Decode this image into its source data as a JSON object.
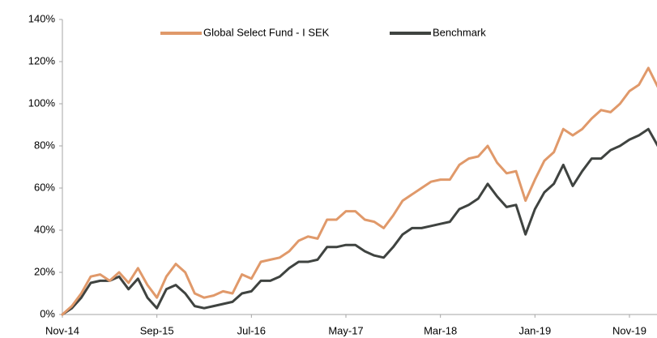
{
  "chart_data": {
    "type": "line",
    "categories": [
      "Nov-14",
      null,
      null,
      null,
      null,
      null,
      null,
      null,
      null,
      null,
      "Sep-15",
      null,
      null,
      null,
      null,
      null,
      null,
      null,
      null,
      null,
      "Jul-16",
      null,
      null,
      null,
      null,
      null,
      null,
      null,
      null,
      null,
      "May-17",
      null,
      null,
      null,
      null,
      null,
      null,
      null,
      null,
      null,
      "Mar-18",
      null,
      null,
      null,
      null,
      null,
      null,
      null,
      null,
      null,
      "Jan-19",
      null,
      null,
      null,
      null,
      null,
      null,
      null,
      null,
      null,
      "Nov-19",
      null,
      null,
      null
    ],
    "series": [
      {
        "name": "Global Select Fund - I SEK",
        "color": "#e0996a",
        "values": [
          0,
          4,
          10,
          18,
          19,
          16,
          20,
          15,
          22,
          14,
          8,
          18,
          24,
          20,
          10,
          8,
          9,
          11,
          10,
          19,
          17,
          25,
          26,
          27,
          30,
          35,
          37,
          36,
          45,
          45,
          49,
          49,
          45,
          44,
          41,
          47,
          54,
          57,
          60,
          63,
          64,
          64,
          71,
          74,
          75,
          80,
          72,
          67,
          68,
          54,
          64,
          73,
          77,
          88,
          85,
          88,
          93,
          97,
          96,
          100,
          106,
          109,
          117,
          108
        ]
      },
      {
        "name": "Benchmark",
        "color": "#3f4340",
        "values": [
          0,
          3,
          8,
          15,
          16,
          16,
          18,
          12,
          17,
          8,
          3,
          12,
          14,
          10,
          4,
          3,
          4,
          5,
          6,
          10,
          11,
          16,
          16,
          18,
          22,
          25,
          25,
          26,
          32,
          32,
          33,
          33,
          30,
          28,
          27,
          32,
          38,
          41,
          41,
          42,
          43,
          44,
          50,
          52,
          55,
          62,
          56,
          51,
          52,
          38,
          50,
          58,
          62,
          71,
          61,
          68,
          74,
          74,
          78,
          80,
          83,
          85,
          88,
          80
        ]
      }
    ],
    "ylim": [
      0,
      140
    ],
    "yticks": [
      {
        "value": 0,
        "label": "0%"
      },
      {
        "value": 20,
        "label": "20%"
      },
      {
        "value": 40,
        "label": "40%"
      },
      {
        "value": 60,
        "label": "60%"
      },
      {
        "value": 80,
        "label": "80%"
      },
      {
        "value": 100,
        "label": "100%"
      },
      {
        "value": 120,
        "label": "120%"
      },
      {
        "value": 140,
        "label": "140%"
      }
    ],
    "grid": false,
    "legend": "top"
  }
}
